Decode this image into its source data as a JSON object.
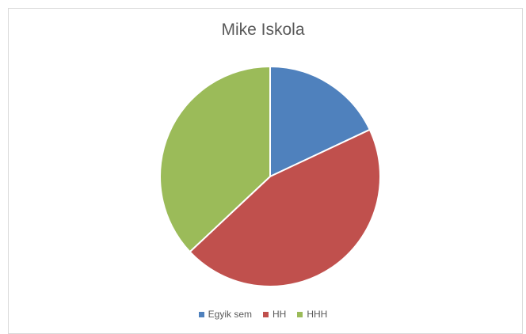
{
  "chart_data": {
    "type": "pie",
    "title": "Mike Iskola",
    "categories": [
      "Egyik sem",
      "HH",
      "HHH"
    ],
    "values": [
      18,
      45,
      37
    ],
    "colors": [
      "#4f81bd",
      "#c0504d",
      "#9bbb59"
    ],
    "legend_position": "bottom",
    "start_angle": "12 o'clock",
    "direction": "clockwise"
  }
}
